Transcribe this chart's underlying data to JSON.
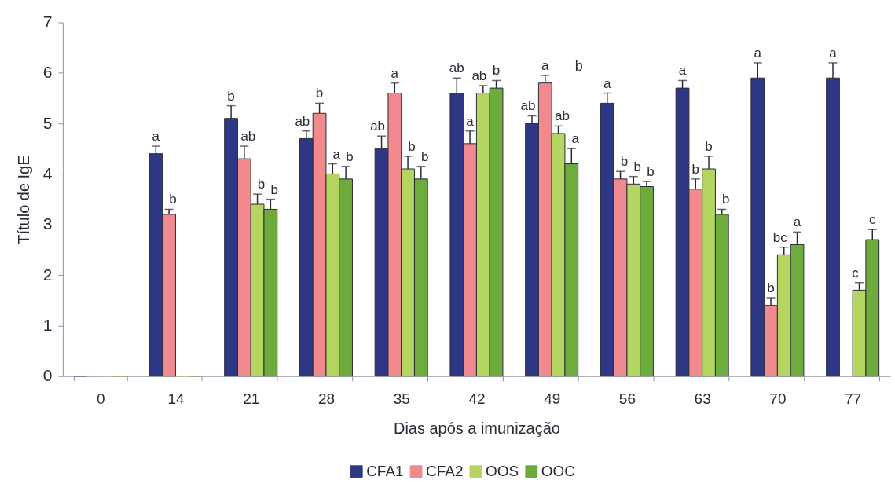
{
  "chart_data": {
    "type": "bar",
    "xlabel": "Dias após a imunização",
    "ylabel": "Título de IgE",
    "categories": [
      "0",
      "14",
      "21",
      "28",
      "35",
      "42",
      "49",
      "56",
      "63",
      "70",
      "77"
    ],
    "ylim": [
      0,
      7
    ],
    "yticks": [
      0,
      1,
      2,
      3,
      4,
      5,
      6,
      7
    ],
    "legend": "bottom",
    "series": [
      {
        "name": "CFA1",
        "color": "#2d3783",
        "values": [
          0,
          4.4,
          5.1,
          4.7,
          4.5,
          5.6,
          5.0,
          5.4,
          5.7,
          5.9,
          5.9
        ],
        "errors": [
          null,
          [
            4.4,
            4.55
          ],
          [
            5.1,
            5.35
          ],
          [
            4.7,
            4.85
          ],
          [
            4.5,
            4.75
          ],
          [
            5.6,
            5.9
          ],
          [
            5.0,
            5.15
          ],
          [
            5.4,
            5.6
          ],
          [
            5.7,
            5.85
          ],
          [
            5.9,
            6.2
          ],
          [
            5.9,
            6.2
          ]
        ],
        "value_labels": [
          null,
          "a",
          "b",
          "ab",
          "ab",
          "ab",
          "ab",
          "a",
          "a",
          "a",
          "a"
        ]
      },
      {
        "name": "CFA2",
        "color": "#f08a8f",
        "values": [
          0,
          3.2,
          4.3,
          5.2,
          5.6,
          4.6,
          5.8,
          3.9,
          3.7,
          1.4,
          0
        ],
        "errors": [
          null,
          [
            3.2,
            3.3
          ],
          [
            4.3,
            4.55
          ],
          [
            5.2,
            5.4
          ],
          [
            5.6,
            5.8
          ],
          [
            4.6,
            4.85
          ],
          [
            5.8,
            5.95
          ],
          [
            3.9,
            4.05
          ],
          [
            3.7,
            3.9
          ],
          [
            1.4,
            1.55
          ],
          null
        ],
        "value_labels": [
          null,
          "b",
          "ab",
          "b",
          "a",
          "a",
          "a",
          "b",
          "b",
          "b",
          null
        ]
      },
      {
        "name": "OOS",
        "color": "#b4d660",
        "values": [
          0,
          0,
          3.4,
          4.0,
          4.1,
          5.6,
          4.8,
          3.8,
          4.1,
          2.4,
          1.7
        ],
        "errors": [
          null,
          null,
          [
            3.4,
            3.6
          ],
          [
            4.0,
            4.2
          ],
          [
            4.1,
            4.35
          ],
          [
            5.6,
            5.75
          ],
          [
            4.8,
            4.95
          ],
          [
            3.8,
            3.95
          ],
          [
            4.1,
            4.35
          ],
          [
            2.4,
            2.55
          ],
          [
            1.7,
            1.85
          ]
        ],
        "value_labels": [
          null,
          null,
          "b",
          "a",
          "b",
          "ab",
          "ab",
          "b",
          "b",
          "bc",
          "c"
        ]
      },
      {
        "name": "OOC",
        "color": "#6cab3c",
        "values": [
          0,
          0,
          3.3,
          3.9,
          3.9,
          5.7,
          4.2,
          3.75,
          3.2,
          2.6,
          2.7
        ],
        "errors": [
          null,
          null,
          [
            3.3,
            3.5
          ],
          [
            3.9,
            4.15
          ],
          [
            3.9,
            4.15
          ],
          [
            5.7,
            5.85
          ],
          [
            4.2,
            4.5
          ],
          [
            3.75,
            3.85
          ],
          [
            3.2,
            3.3
          ],
          [
            2.6,
            2.85
          ],
          [
            2.7,
            2.9
          ]
        ],
        "value_labels": [
          null,
          null,
          "b",
          "b",
          "b",
          "b",
          "a",
          "b",
          "b",
          "a",
          "c"
        ]
      }
    ],
    "annotations": [
      "b"
    ]
  }
}
